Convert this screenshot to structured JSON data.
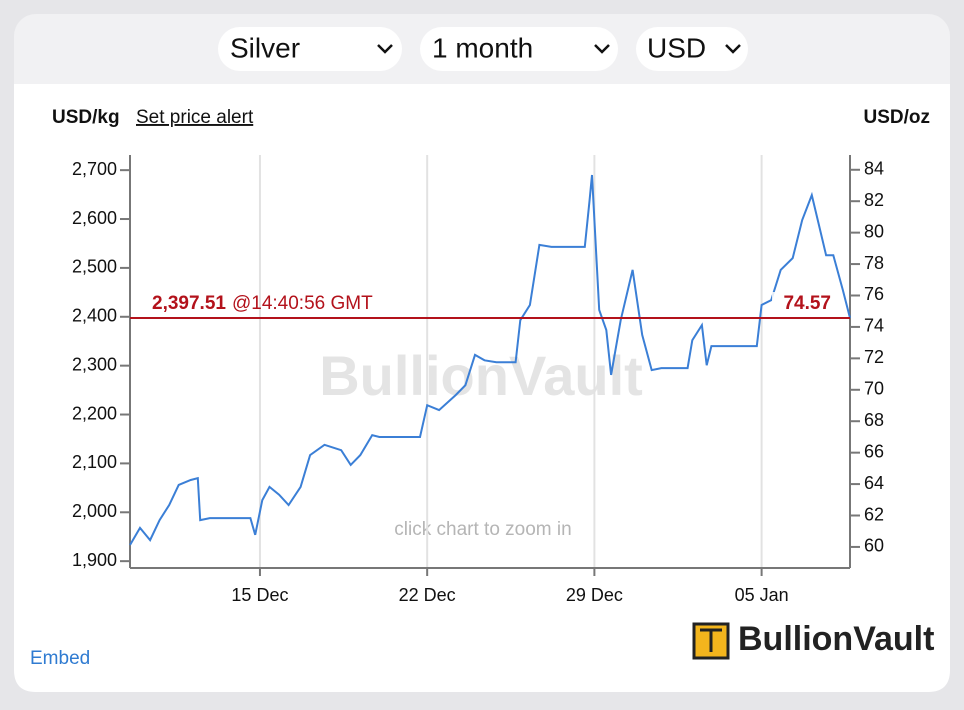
{
  "header": {
    "selects": [
      "Silver",
      "1 month",
      "USD"
    ]
  },
  "chart_data": {
    "type": "line",
    "y_label": "USD/kg",
    "y2_label": "USD/oz",
    "alert_link": "Set price alert",
    "watermark": "BullionVault",
    "hint": "click chart to zoom in",
    "x": [
      9.56,
      9.98,
      10.4,
      10.8,
      11.2,
      11.6,
      12.1,
      12.4,
      12.5,
      12.9,
      14.6,
      14.8,
      15.1,
      15.4,
      15.8,
      16.2,
      16.7,
      17.1,
      17.7,
      18.4,
      18.8,
      19.2,
      19.7,
      20.0,
      21.7,
      22.0,
      22.5,
      23.2,
      23.6,
      24.0,
      24.4,
      24.9,
      25.7,
      25.9,
      26.3,
      26.7,
      27.2,
      28.6,
      28.8,
      28.9,
      29.2,
      29.5,
      29.7,
      30.1,
      30.6,
      31.0,
      31.4,
      31.8,
      32.9,
      33.1,
      33.5,
      33.7,
      33.9,
      35.8,
      36.0,
      36.4,
      36.8,
      37.3,
      37.7,
      38.1,
      38.4,
      38.7,
      39.0,
      39.4,
      39.7
    ],
    "values": [
      1933,
      1968,
      1943,
      1984,
      2015,
      2056,
      2066,
      2070,
      1984,
      1988,
      1988,
      1954,
      2025,
      2052,
      2036,
      2015,
      2052,
      2117,
      2138,
      2127,
      2097,
      2117,
      2158,
      2154,
      2154,
      2219,
      2209,
      2240,
      2260,
      2322,
      2311,
      2307,
      2307,
      2393,
      2424,
      2547,
      2543,
      2543,
      2639,
      2690,
      2414,
      2373,
      2281,
      2393,
      2496,
      2363,
      2291,
      2295,
      2295,
      2352,
      2383,
      2301,
      2340,
      2340,
      2424,
      2434,
      2496,
      2520,
      2598,
      2649,
      2588,
      2526,
      2526,
      2455,
      2397.51
    ],
    "color": "#3b7fd6",
    "xlim": [
      9.56,
      39.7
    ],
    "xticks": [
      {
        "value": 15,
        "label": "15 Dec"
      },
      {
        "value": 22,
        "label": "22 Dec"
      },
      {
        "value": 29,
        "label": "29 Dec"
      },
      {
        "value": 36,
        "label": "05 Jan"
      }
    ],
    "ylim": [
      1886,
      2731
    ],
    "yticks": [
      {
        "value": 1900,
        "label": "1,900"
      },
      {
        "value": 2000,
        "label": "2,000"
      },
      {
        "value": 2100,
        "label": "2,100"
      },
      {
        "value": 2200,
        "label": "2,200"
      },
      {
        "value": 2300,
        "label": "2,300"
      },
      {
        "value": 2400,
        "label": "2,400"
      },
      {
        "value": 2500,
        "label": "2,500"
      },
      {
        "value": 2600,
        "label": "2,600"
      },
      {
        "value": 2700,
        "label": "2,700"
      }
    ],
    "y2lim": [
      58.66,
      84.94
    ],
    "y2ticks": [
      60,
      62,
      64,
      66,
      68,
      70,
      72,
      74,
      76,
      78,
      80,
      82,
      84
    ],
    "grid": "x",
    "current_price": {
      "value": 2397.51,
      "label": "2,397.51"
    },
    "current_time": "@14:40:56 GMT",
    "current_price_oz": 74.57,
    "current_color": "#b3121b"
  },
  "footer": {
    "embed": "Embed",
    "logo": "BullionVault"
  }
}
